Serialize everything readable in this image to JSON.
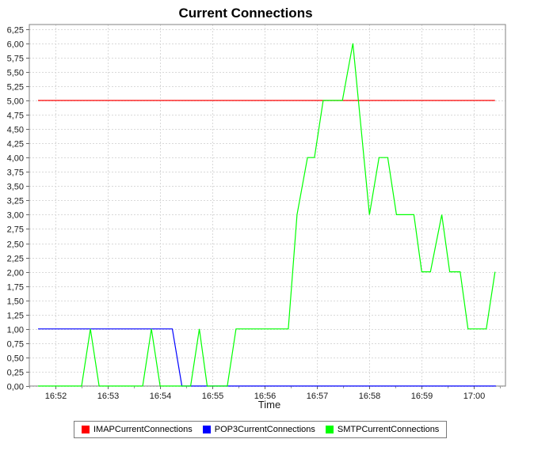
{
  "chart_data": {
    "type": "line",
    "title": "Current Connections",
    "xlabel": "Time",
    "ylabel": "",
    "x_tick_labels": [
      "16:52",
      "16:53",
      "16:54",
      "16:55",
      "16:56",
      "16:57",
      "16:58",
      "16:59",
      "17:00"
    ],
    "y_tick_labels": [
      "0,00",
      "0,25",
      "0,50",
      "0,75",
      "1,00",
      "1,25",
      "1,50",
      "1,75",
      "2,00",
      "2,25",
      "2,50",
      "2,75",
      "3,00",
      "3,25",
      "3,50",
      "3,75",
      "4,00",
      "4,25",
      "4,50",
      "4,75",
      "5,00",
      "5,25",
      "5,50",
      "5,75",
      "6,00",
      "6,25"
    ],
    "y_tick_step": 0.25,
    "ylim": [
      0,
      6.33
    ],
    "xlim": [
      "16:51:30",
      "17:00:36"
    ],
    "grid": true,
    "legend_position": "bottom",
    "series": [
      {
        "name": "IMAPCurrentConnections",
        "color": "#ff0000",
        "points": [
          [
            "16:51:40",
            5
          ],
          [
            "17:00:24",
            5
          ]
        ]
      },
      {
        "name": "POP3CurrentConnections",
        "color": "#0000ff",
        "points": [
          [
            "16:51:40",
            1
          ],
          [
            "16:54:14",
            1
          ],
          [
            "16:54:25",
            0
          ],
          [
            "17:00:25",
            0
          ]
        ]
      },
      {
        "name": "SMTPCurrentConnections",
        "color": "#00ff00",
        "points": [
          [
            "16:51:40",
            0
          ],
          [
            "16:52:30",
            0
          ],
          [
            "16:52:40",
            1
          ],
          [
            "16:52:50",
            0
          ],
          [
            "16:53:40",
            0
          ],
          [
            "16:53:50",
            1
          ],
          [
            "16:54:00",
            0
          ],
          [
            "16:54:35",
            0
          ],
          [
            "16:54:45",
            1
          ],
          [
            "16:54:54",
            0
          ],
          [
            "16:55:17",
            0
          ],
          [
            "16:55:27",
            1
          ],
          [
            "16:56:27",
            1
          ],
          [
            "16:56:37",
            3
          ],
          [
            "16:56:49",
            4
          ],
          [
            "16:56:57",
            4
          ],
          [
            "16:57:07",
            5
          ],
          [
            "16:57:29",
            5
          ],
          [
            "16:57:41",
            6
          ],
          [
            "16:58:00",
            3
          ],
          [
            "16:58:11",
            4
          ],
          [
            "16:58:21",
            4
          ],
          [
            "16:58:31",
            3
          ],
          [
            "16:58:51",
            3
          ],
          [
            "16:59:00",
            2
          ],
          [
            "16:59:10",
            2
          ],
          [
            "16:59:23",
            3
          ],
          [
            "16:59:32",
            2
          ],
          [
            "16:59:44",
            2
          ],
          [
            "16:59:53",
            1
          ],
          [
            "17:00:14",
            1
          ],
          [
            "17:00:24",
            2
          ]
        ]
      }
    ]
  },
  "styles": {
    "grid_color": "#d9d9d9",
    "plot_border_color": "#808080",
    "major_tick_color": "#666666",
    "minor_tick_color": "#999999",
    "text_color": "#1a1a1a",
    "background": "#ffffff"
  }
}
